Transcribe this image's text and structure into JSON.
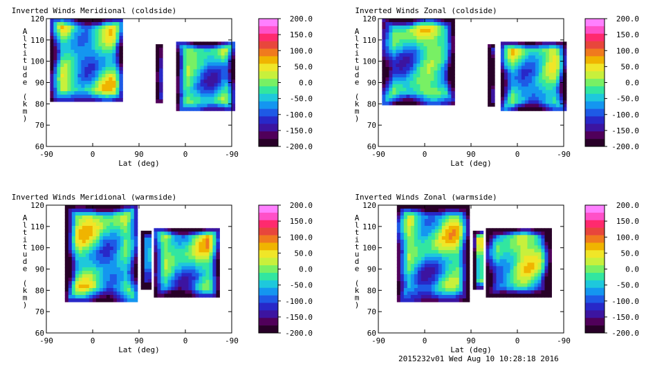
{
  "footer": "2015232v01 Wed Aug 10 10:28:18 2016",
  "colorbar": {
    "labels": [
      "200.0",
      "150.0",
      "100.0",
      "50.0",
      "0.0",
      "-50.0",
      "-100.0",
      "-150.0",
      "-200.0"
    ],
    "colors": [
      "#ff80ff",
      "#ff50c8",
      "#ff2a6e",
      "#e8463c",
      "#f07a1e",
      "#f0b400",
      "#f0e628",
      "#c8f03c",
      "#78f064",
      "#32e6a0",
      "#1ec8dc",
      "#1496f0",
      "#1e5ae6",
      "#2828c8",
      "#3c14a0",
      "#50005a",
      "#280028"
    ]
  },
  "charts": [
    {
      "type": "heatmap",
      "title": "Inverted Winds Meridional (coldside)",
      "xlabel": "Lat (deg)",
      "ylabel": "Altitude (km)",
      "xticks": [
        "-90",
        "0",
        "90",
        "0",
        "-90"
      ],
      "yticks": [
        "60",
        "70",
        "80",
        "90",
        "100",
        "110",
        "120"
      ],
      "ylim": [
        60,
        120
      ]
    },
    {
      "type": "heatmap",
      "title": "Inverted Winds Zonal (coldside)",
      "xlabel": "Lat (deg)",
      "ylabel": "Altitude (km)",
      "xticks": [
        "-90",
        "0",
        "90",
        "0",
        "-90"
      ],
      "yticks": [
        "60",
        "70",
        "80",
        "90",
        "100",
        "110",
        "120"
      ],
      "ylim": [
        60,
        120
      ]
    },
    {
      "type": "heatmap",
      "title": "Inverted Winds Meridional (warmside)",
      "xlabel": "Lat (deg)",
      "ylabel": "Altitude (km)",
      "xticks": [
        "-90",
        "0",
        "90",
        "0",
        "-90"
      ],
      "yticks": [
        "60",
        "70",
        "80",
        "90",
        "100",
        "110",
        "120"
      ],
      "ylim": [
        60,
        120
      ]
    },
    {
      "type": "heatmap",
      "title": "Inverted Winds Zonal (warmside)",
      "xlabel": "Lat (deg)",
      "ylabel": "Altitude (km)",
      "xticks": [
        "-90",
        "0",
        "90",
        "0",
        "-90"
      ],
      "yticks": [
        "60",
        "70",
        "80",
        "90",
        "100",
        "110",
        "120"
      ],
      "ylim": [
        60,
        120
      ]
    }
  ]
}
